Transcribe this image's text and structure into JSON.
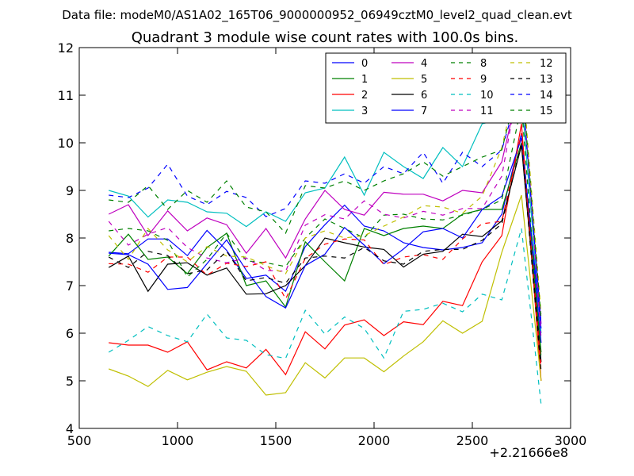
{
  "chart_data": {
    "type": "line",
    "suptitle": "Data file: modeM0/AS1A02_165T06_9000000952_06949cztM0_level2_quad_clean.evt",
    "title": "Quadrant 3 module wise count rates with 100.0s bins.",
    "xlabel": "",
    "ylabel": "",
    "xlim": [
      500,
      3000
    ],
    "ylim": [
      4,
      12
    ],
    "x_ticks": [
      500,
      1000,
      1500,
      2000,
      2500,
      3000
    ],
    "y_ticks": [
      4,
      5,
      6,
      7,
      8,
      9,
      10,
      11,
      12
    ],
    "x_offset_label": "+2.21666e8",
    "grid": false,
    "legend": {
      "placement": "top-right",
      "columns": 4
    },
    "x": [
      650,
      750,
      850,
      950,
      1050,
      1150,
      1250,
      1350,
      1450,
      1550,
      1650,
      1750,
      1850,
      1950,
      2050,
      2150,
      2250,
      2350,
      2450,
      2550,
      2650,
      2750,
      2850
    ],
    "series": [
      {
        "name": "0",
        "color": "#0000ff",
        "dash": "solid",
        "values": [
          7.7,
          7.67,
          7.98,
          7.98,
          7.63,
          8.16,
          7.74,
          7.15,
          7.22,
          6.88,
          7.82,
          8.28,
          8.69,
          8.25,
          8.15,
          7.9,
          7.8,
          7.75,
          7.8,
          7.9,
          8.5,
          10.2,
          5.8
        ]
      },
      {
        "name": "1",
        "color": "#008000",
        "dash": "solid",
        "values": [
          7.62,
          8.08,
          7.55,
          7.6,
          7.25,
          7.8,
          8.1,
          7.0,
          7.1,
          6.55,
          7.92,
          7.5,
          7.1,
          8.2,
          8.05,
          8.2,
          8.25,
          8.2,
          8.5,
          8.6,
          8.6,
          10.0,
          5.6
        ]
      },
      {
        "name": "2",
        "color": "#ff0000",
        "dash": "solid",
        "values": [
          5.8,
          5.75,
          5.75,
          5.6,
          5.82,
          5.23,
          5.4,
          5.27,
          5.66,
          5.13,
          6.03,
          5.67,
          6.17,
          6.28,
          5.95,
          6.24,
          6.18,
          6.67,
          6.58,
          7.5,
          8.05,
          10.4,
          5.0
        ]
      },
      {
        "name": "3",
        "color": "#00bfbf",
        "dash": "solid",
        "values": [
          9.0,
          8.88,
          8.44,
          8.8,
          8.75,
          8.55,
          8.52,
          8.24,
          8.55,
          8.35,
          8.95,
          9.05,
          9.7,
          8.9,
          9.8,
          9.5,
          9.25,
          9.9,
          9.5,
          10.4,
          10.5,
          11.0,
          6.0
        ]
      },
      {
        "name": "4",
        "color": "#bf00bf",
        "dash": "solid",
        "values": [
          8.5,
          8.7,
          8.05,
          8.57,
          8.15,
          8.42,
          8.28,
          7.68,
          8.2,
          7.58,
          8.4,
          9.0,
          8.6,
          8.48,
          8.96,
          8.92,
          8.92,
          8.78,
          9.0,
          8.95,
          9.6,
          11.4,
          6.2
        ]
      },
      {
        "name": "5",
        "color": "#bfbf00",
        "dash": "solid",
        "values": [
          5.25,
          5.1,
          4.88,
          5.22,
          5.02,
          5.18,
          5.3,
          5.2,
          4.7,
          4.75,
          5.38,
          5.06,
          5.48,
          5.48,
          5.19,
          5.52,
          5.82,
          6.26,
          6.0,
          6.25,
          7.7,
          8.9,
          5.0
        ]
      },
      {
        "name": "6",
        "color": "#000000",
        "dash": "solid",
        "values": [
          7.38,
          7.62,
          6.88,
          7.45,
          7.48,
          7.22,
          7.37,
          6.82,
          6.83,
          7.0,
          7.42,
          8.0,
          7.9,
          7.81,
          7.76,
          7.39,
          7.66,
          7.72,
          8.08,
          8.03,
          8.36,
          9.94,
          5.4
        ]
      },
      {
        "name": "7",
        "color": "#0000ff",
        "dash": "solid",
        "values": [
          7.68,
          7.65,
          7.45,
          6.92,
          6.96,
          7.46,
          7.96,
          7.32,
          6.77,
          6.53,
          7.42,
          7.66,
          8.22,
          7.85,
          7.46,
          7.77,
          8.13,
          8.2,
          8.0,
          8.6,
          8.88,
          10.1,
          6.1
        ]
      },
      {
        "name": "8",
        "color": "#008000",
        "dash": "dashed",
        "values": [
          8.15,
          8.2,
          8.15,
          7.95,
          7.18,
          7.55,
          8.1,
          7.52,
          7.48,
          7.4,
          8.0,
          8.4,
          8.2,
          8.0,
          8.48,
          8.5,
          8.4,
          8.38,
          8.48,
          8.6,
          8.8,
          10.8,
          5.5
        ]
      },
      {
        "name": "9",
        "color": "#ff0000",
        "dash": "dashed",
        "values": [
          7.46,
          7.45,
          7.28,
          7.6,
          7.6,
          7.22,
          7.47,
          7.4,
          7.5,
          6.72,
          7.57,
          7.87,
          7.98,
          7.96,
          7.44,
          7.6,
          7.65,
          7.55,
          7.98,
          8.3,
          8.35,
          10.2,
          5.3
        ]
      },
      {
        "name": "10",
        "color": "#00bfbf",
        "dash": "dashed",
        "values": [
          5.6,
          5.85,
          6.14,
          5.95,
          5.82,
          6.4,
          5.9,
          5.85,
          5.55,
          5.47,
          6.48,
          5.98,
          6.34,
          6.1,
          5.48,
          6.46,
          6.5,
          6.63,
          6.45,
          6.82,
          6.7,
          8.2,
          4.5
        ]
      },
      {
        "name": "11",
        "color": "#bf00bf",
        "dash": "dashed",
        "values": [
          8.35,
          7.85,
          8.08,
          8.22,
          7.8,
          7.58,
          7.48,
          7.58,
          7.32,
          7.3,
          8.27,
          8.49,
          8.4,
          8.78,
          8.5,
          8.42,
          8.56,
          8.48,
          8.62,
          8.62,
          9.3,
          11.6,
          5.9
        ]
      },
      {
        "name": "12",
        "color": "#bfbf00",
        "dash": "dashed",
        "values": [
          8.05,
          7.55,
          8.2,
          7.75,
          7.5,
          7.82,
          7.62,
          7.6,
          7.42,
          7.25,
          8.0,
          8.15,
          8.0,
          8.05,
          8.25,
          8.44,
          8.68,
          8.65,
          8.52,
          8.88,
          9.9,
          11.7,
          6.4
        ]
      },
      {
        "name": "13",
        "color": "#000000",
        "dash": "dashed",
        "values": [
          7.6,
          7.38,
          7.72,
          7.63,
          7.25,
          7.33,
          7.72,
          7.1,
          7.17,
          7.05,
          7.58,
          7.62,
          7.58,
          7.8,
          7.52,
          7.45,
          7.72,
          7.76,
          7.76,
          7.95,
          8.3,
          10.0,
          5.2
        ]
      },
      {
        "name": "14",
        "color": "#0000ff",
        "dash": "dashed",
        "values": [
          8.9,
          8.85,
          9.05,
          9.55,
          8.88,
          8.7,
          8.98,
          8.85,
          8.45,
          8.62,
          9.2,
          9.15,
          9.35,
          9.15,
          9.5,
          9.35,
          9.8,
          9.15,
          9.8,
          9.5,
          9.85,
          11.3,
          6.2
        ]
      },
      {
        "name": "15",
        "color": "#008000",
        "dash": "dashed",
        "values": [
          8.8,
          8.75,
          9.1,
          8.6,
          9.0,
          8.75,
          9.2,
          8.65,
          8.55,
          8.1,
          9.1,
          9.05,
          9.2,
          9.0,
          9.2,
          9.35,
          9.6,
          9.3,
          9.5,
          9.7,
          9.85,
          11.5,
          6.3
        ]
      }
    ]
  }
}
